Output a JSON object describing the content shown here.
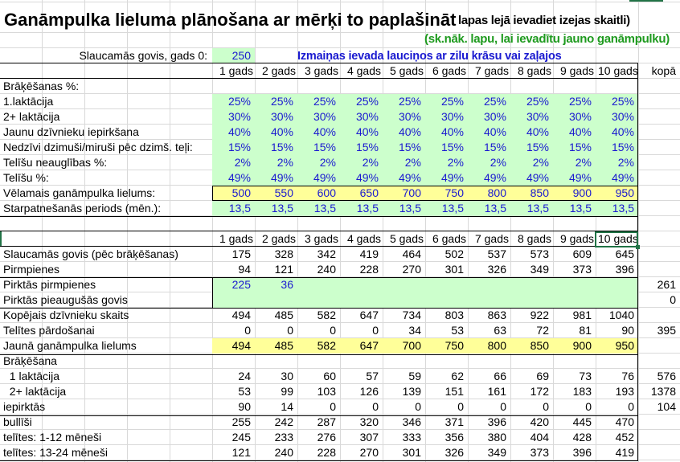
{
  "sheet": {
    "title": "Ganāmpulka lieluma plānošana ar mērķi to paplašināt",
    "note_top": "lapas lejā ievadiet izejas skaitli)",
    "note_green": "(sk.nāk. lapu, lai ievadītu jauno ganāmpulku)",
    "note_blue": "Izmaiņas ievada lauciņos ar zilu krāsu vai zaļajos",
    "start_label": "Slaucamās govis, gads 0:",
    "start_value": "250",
    "colors": {
      "input_green": "#ccffcc",
      "target_yellow": "#ffff99",
      "input_text_blue": "#1a1ad0",
      "note_green": "#1e9a1e",
      "selection": "#217346"
    }
  },
  "years": [
    "1 gads",
    "2 gads",
    "3 gads",
    "4 gads",
    "5 gads",
    "6 gads",
    "7 gads",
    "8 gads",
    "9 gads",
    "10 gads"
  ],
  "total_header": "kopā",
  "table1": {
    "section_label": "Brāķēšanas %:",
    "rows": [
      {
        "label": "1.laktācija",
        "values": [
          "25%",
          "25%",
          "25%",
          "25%",
          "25%",
          "25%",
          "25%",
          "25%",
          "25%",
          "25%"
        ]
      },
      {
        "label": "2+ laktācija",
        "values": [
          "30%",
          "30%",
          "30%",
          "30%",
          "30%",
          "30%",
          "30%",
          "30%",
          "30%",
          "30%"
        ]
      },
      {
        "label": "Jaunu dzīvnieku iepirkšana",
        "values": [
          "40%",
          "40%",
          "40%",
          "40%",
          "40%",
          "40%",
          "40%",
          "40%",
          "40%",
          "40%"
        ]
      },
      {
        "label": "Nedzīvi dzimuši/miruši pēc dzimš. teļi:",
        "values": [
          "15%",
          "15%",
          "15%",
          "15%",
          "15%",
          "15%",
          "15%",
          "15%",
          "15%",
          "15%"
        ]
      },
      {
        "label": "Telīšu neauglības %:",
        "values": [
          "2%",
          "2%",
          "2%",
          "2%",
          "2%",
          "2%",
          "2%",
          "2%",
          "2%",
          "2%"
        ]
      },
      {
        "label": "Telīšu %:",
        "values": [
          "49%",
          "49%",
          "49%",
          "49%",
          "49%",
          "49%",
          "49%",
          "49%",
          "49%",
          "49%"
        ]
      },
      {
        "label": "Vēlamais ganāmpulka lielums:",
        "values": [
          "500",
          "550",
          "600",
          "650",
          "700",
          "750",
          "800",
          "850",
          "900",
          "950"
        ]
      },
      {
        "label": "Starpatnešanās periods (mēn.):",
        "values": [
          "13,5",
          "13,5",
          "13,5",
          "13,5",
          "13,5",
          "13,5",
          "13,5",
          "13,5",
          "13,5",
          "13,5"
        ]
      }
    ]
  },
  "table2": {
    "rows": [
      {
        "label": "Slaucamās govis (pēc brāķēšanas)",
        "values": [
          "175",
          "328",
          "342",
          "419",
          "464",
          "502",
          "537",
          "573",
          "609",
          "645"
        ],
        "total": ""
      },
      {
        "label": "Pirmpienes",
        "values": [
          "94",
          "121",
          "240",
          "228",
          "270",
          "301",
          "326",
          "349",
          "373",
          "396"
        ],
        "total": ""
      },
      {
        "label": "Pirktās pirmpienes",
        "values": [
          "225",
          "36",
          "",
          "",
          "",
          "",
          "",
          "",
          "",
          ""
        ],
        "total": "261"
      },
      {
        "label": "Pirktās pieaugušās govis",
        "values": [
          "",
          "",
          "",
          "",
          "",
          "",
          "",
          "",
          "",
          ""
        ],
        "total": "0"
      },
      {
        "label": "Kopējais dzīvnieku skaits",
        "values": [
          "494",
          "485",
          "582",
          "647",
          "734",
          "803",
          "863",
          "922",
          "981",
          "1040"
        ],
        "total": ""
      },
      {
        "label": "Telītes pārdošanai",
        "values": [
          "0",
          "0",
          "0",
          "0",
          "34",
          "53",
          "63",
          "72",
          "81",
          "90"
        ],
        "total": "395"
      },
      {
        "label": "Jaunā ganāmpulka lielums",
        "values": [
          "494",
          "485",
          "582",
          "647",
          "700",
          "750",
          "800",
          "850",
          "900",
          "950"
        ],
        "total": ""
      },
      {
        "label": "Brāķēšana",
        "values": [
          "",
          "",
          "",
          "",
          "",
          "",
          "",
          "",
          "",
          ""
        ],
        "total": ""
      },
      {
        "label": "  1 laktācija",
        "values": [
          "24",
          "30",
          "60",
          "57",
          "59",
          "62",
          "66",
          "69",
          "73",
          "76"
        ],
        "total": "576"
      },
      {
        "label": "  2+ laktācija",
        "values": [
          "53",
          "99",
          "103",
          "126",
          "139",
          "151",
          "161",
          "172",
          "183",
          "193"
        ],
        "total": "1378"
      },
      {
        "label": "iepirktās",
        "values": [
          "90",
          "14",
          "0",
          "0",
          "0",
          "0",
          "0",
          "0",
          "0",
          "0"
        ],
        "total": "104"
      },
      {
        "label": "bullīši",
        "values": [
          "255",
          "242",
          "287",
          "320",
          "346",
          "371",
          "396",
          "420",
          "445",
          "470"
        ],
        "total": ""
      },
      {
        "label": "telītes: 1-12 mēneši",
        "values": [
          "245",
          "233",
          "276",
          "307",
          "333",
          "356",
          "380",
          "404",
          "428",
          "452"
        ],
        "total": ""
      },
      {
        "label": "telītes: 13-24 mēneši",
        "values": [
          "121",
          "240",
          "228",
          "270",
          "301",
          "326",
          "349",
          "373",
          "396",
          "419"
        ],
        "total": ""
      }
    ]
  }
}
